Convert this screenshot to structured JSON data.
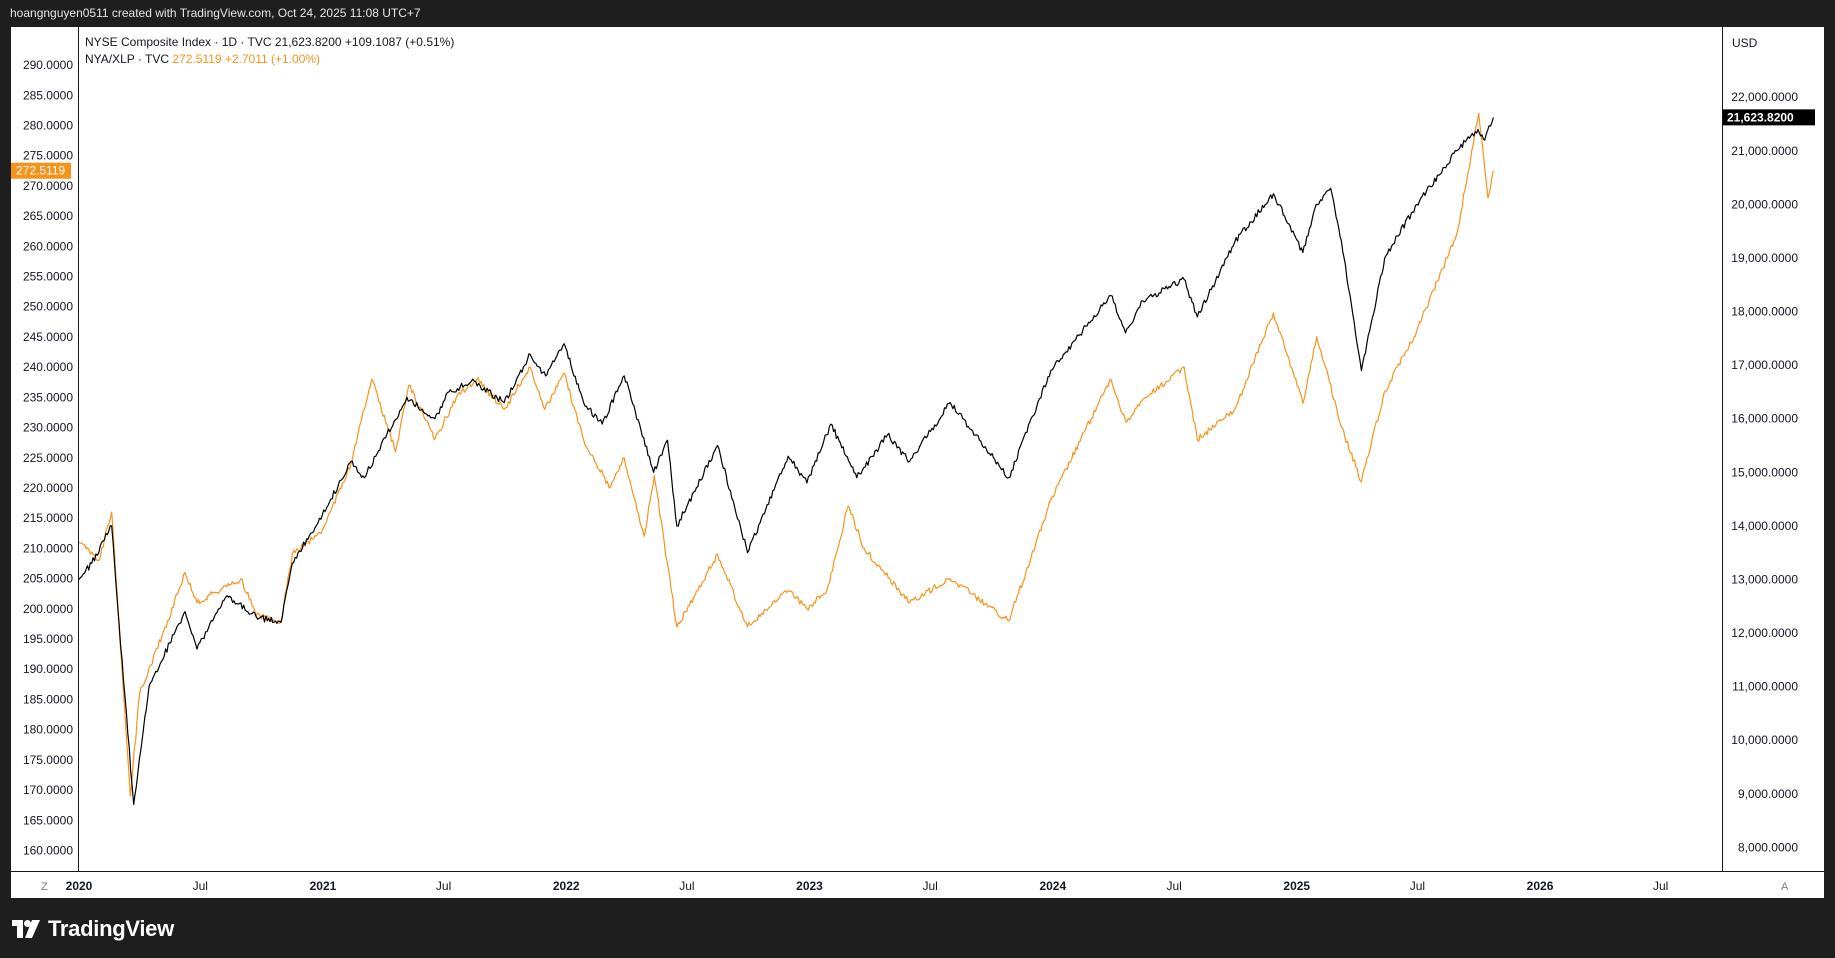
{
  "header": {
    "attribution": "hoangnguyen0511 created with TradingView.com, Oct 24, 2025 11:08 UTC+7"
  },
  "legend": {
    "line1": "NYSE Composite Index · 1D · TVC  21,623.8200  +109.1087 (+0.51%)",
    "line2_name": "NYA/XLP · TVC",
    "line2_values": "272.5119  +2.7011 (+1.00%)"
  },
  "colors": {
    "nya": "#000000",
    "ratio": "#f7931a",
    "background": "#ffffff",
    "frame": "#1e1e1e"
  },
  "axes": {
    "right_currency": "USD",
    "left_current_label": "272.5119",
    "right_current_label": "21,623.8200",
    "corner_left": "Z",
    "corner_right": "A"
  },
  "footer": {
    "brand": "TradingView",
    "logo_icon": "tradingview-logo-icon"
  },
  "chart_data": {
    "type": "line",
    "x_range": [
      "2020-01-01",
      "2026-10-01"
    ],
    "x_ticks": [
      {
        "date": "2020-01-01",
        "label": "2020",
        "bold": true
      },
      {
        "date": "2020-07-01",
        "label": "Jul",
        "bold": false
      },
      {
        "date": "2021-01-01",
        "label": "2021",
        "bold": true
      },
      {
        "date": "2021-07-01",
        "label": "Jul",
        "bold": false
      },
      {
        "date": "2022-01-01",
        "label": "2022",
        "bold": true
      },
      {
        "date": "2022-07-01",
        "label": "Jul",
        "bold": false
      },
      {
        "date": "2023-01-01",
        "label": "2023",
        "bold": true
      },
      {
        "date": "2023-07-01",
        "label": "Jul",
        "bold": false
      },
      {
        "date": "2024-01-01",
        "label": "2024",
        "bold": true
      },
      {
        "date": "2024-07-01",
        "label": "Jul",
        "bold": false
      },
      {
        "date": "2025-01-01",
        "label": "2025",
        "bold": true
      },
      {
        "date": "2025-07-01",
        "label": "Jul",
        "bold": false
      },
      {
        "date": "2026-01-01",
        "label": "2026",
        "bold": true
      },
      {
        "date": "2026-07-01",
        "label": "Jul",
        "bold": false
      }
    ],
    "left_axis": {
      "ylim": [
        156.6,
        296.3
      ],
      "ticks": [
        "290.0000",
        "285.0000",
        "280.0000",
        "275.0000",
        "270.0000",
        "265.0000",
        "260.0000",
        "255.0000",
        "250.0000",
        "245.0000",
        "240.0000",
        "235.0000",
        "230.0000",
        "225.0000",
        "220.0000",
        "215.0000",
        "210.0000",
        "205.0000",
        "200.0000",
        "195.0000",
        "190.0000",
        "185.0000",
        "180.0000",
        "175.0000",
        "170.0000",
        "165.0000",
        "160.0000"
      ]
    },
    "right_axis": {
      "ylim": [
        7560,
        23310
      ],
      "ticks": [
        "22,000.0000",
        "21,000.0000",
        "20,000.0000",
        "19,000.0000",
        "18,000.0000",
        "17,000.0000",
        "16,000.0000",
        "15,000.0000",
        "14,000.0000",
        "13,000.0000",
        "12,000.0000",
        "11,000.0000",
        "10,000.0000",
        "9,000.0000",
        "8,000.0000"
      ]
    },
    "series": [
      {
        "name": "NYSE Composite Index",
        "axis": "right",
        "points": [
          [
            "2020-01-01",
            13000
          ],
          [
            "2020-01-20",
            13300
          ],
          [
            "2020-02-19",
            14000
          ],
          [
            "2020-02-28",
            12500
          ],
          [
            "2020-03-23",
            8800
          ],
          [
            "2020-04-15",
            11000
          ],
          [
            "2020-06-08",
            12400
          ],
          [
            "2020-06-26",
            11700
          ],
          [
            "2020-08-10",
            12700
          ],
          [
            "2020-09-23",
            12300
          ],
          [
            "2020-10-30",
            12200
          ],
          [
            "2020-11-16",
            13300
          ],
          [
            "2020-12-31",
            14200
          ],
          [
            "2021-02-12",
            15200
          ],
          [
            "2021-03-04",
            14900
          ],
          [
            "2021-05-07",
            16400
          ],
          [
            "2021-06-18",
            16000
          ],
          [
            "2021-07-09",
            16500
          ],
          [
            "2021-08-16",
            16700
          ],
          [
            "2021-09-30",
            16300
          ],
          [
            "2021-11-08",
            17200
          ],
          [
            "2021-12-01",
            16800
          ],
          [
            "2021-12-29",
            17400
          ],
          [
            "2022-01-27",
            16300
          ],
          [
            "2022-02-24",
            15900
          ],
          [
            "2022-03-29",
            16800
          ],
          [
            "2022-05-12",
            15000
          ],
          [
            "2022-06-02",
            15600
          ],
          [
            "2022-06-16",
            14000
          ],
          [
            "2022-08-16",
            15500
          ],
          [
            "2022-09-30",
            13500
          ],
          [
            "2022-11-30",
            15300
          ],
          [
            "2022-12-28",
            14800
          ],
          [
            "2023-02-02",
            15900
          ],
          [
            "2023-03-13",
            14900
          ],
          [
            "2023-04-28",
            15700
          ],
          [
            "2023-05-31",
            15200
          ],
          [
            "2023-07-31",
            16300
          ],
          [
            "2023-10-27",
            14900
          ],
          [
            "2023-12-29",
            16900
          ],
          [
            "2024-03-28",
            18300
          ],
          [
            "2024-04-19",
            17600
          ],
          [
            "2024-05-15",
            18200
          ],
          [
            "2024-07-16",
            18600
          ],
          [
            "2024-08-05",
            17900
          ],
          [
            "2024-09-30",
            19300
          ],
          [
            "2024-11-27",
            20200
          ],
          [
            "2025-01-10",
            19100
          ],
          [
            "2025-01-30",
            20000
          ],
          [
            "2025-02-21",
            20300
          ],
          [
            "2025-03-13",
            19000
          ],
          [
            "2025-04-08",
            16900
          ],
          [
            "2025-05-13",
            19000
          ],
          [
            "2025-06-30",
            20000
          ],
          [
            "2025-08-29",
            21000
          ],
          [
            "2025-09-30",
            21400
          ],
          [
            "2025-10-10",
            21200
          ],
          [
            "2025-10-23",
            21623.82
          ]
        ]
      },
      {
        "name": "NYA/XLP",
        "axis": "left",
        "points": [
          [
            "2020-01-01",
            211
          ],
          [
            "2020-01-31",
            208
          ],
          [
            "2020-02-19",
            216
          ],
          [
            "2020-03-18",
            169
          ],
          [
            "2020-04-01",
            186
          ],
          [
            "2020-05-13",
            198
          ],
          [
            "2020-06-08",
            206
          ],
          [
            "2020-06-26",
            201
          ],
          [
            "2020-08-31",
            205
          ],
          [
            "2020-09-23",
            199
          ],
          [
            "2020-10-30",
            198
          ],
          [
            "2020-11-16",
            209
          ],
          [
            "2020-12-31",
            213
          ],
          [
            "2021-02-12",
            224
          ],
          [
            "2021-03-15",
            238
          ],
          [
            "2021-04-20",
            226
          ],
          [
            "2021-05-10",
            237
          ],
          [
            "2021-06-18",
            228
          ],
          [
            "2021-07-20",
            235
          ],
          [
            "2021-08-20",
            238
          ],
          [
            "2021-09-30",
            233
          ],
          [
            "2021-11-08",
            240
          ],
          [
            "2021-11-30",
            233
          ],
          [
            "2021-12-29",
            239
          ],
          [
            "2022-01-27",
            228
          ],
          [
            "2022-03-08",
            220
          ],
          [
            "2022-03-29",
            225
          ],
          [
            "2022-04-28",
            212
          ],
          [
            "2022-05-13",
            222
          ],
          [
            "2022-06-16",
            197
          ],
          [
            "2022-08-16",
            209
          ],
          [
            "2022-09-30",
            197
          ],
          [
            "2022-11-30",
            203
          ],
          [
            "2022-12-28",
            200
          ],
          [
            "2023-01-27",
            203
          ],
          [
            "2023-02-28",
            217
          ],
          [
            "2023-03-24",
            210
          ],
          [
            "2023-05-31",
            201
          ],
          [
            "2023-07-31",
            205
          ],
          [
            "2023-10-27",
            198
          ],
          [
            "2023-12-29",
            218
          ],
          [
            "2024-03-28",
            238
          ],
          [
            "2024-04-19",
            231
          ],
          [
            "2024-05-20",
            235
          ],
          [
            "2024-07-16",
            240
          ],
          [
            "2024-08-05",
            228
          ],
          [
            "2024-09-30",
            233
          ],
          [
            "2024-11-27",
            249
          ],
          [
            "2025-01-10",
            234
          ],
          [
            "2025-01-31",
            245
          ],
          [
            "2025-03-10",
            230
          ],
          [
            "2025-04-08",
            221
          ],
          [
            "2025-05-13",
            236
          ],
          [
            "2025-06-30",
            246
          ],
          [
            "2025-08-29",
            262
          ],
          [
            "2025-10-01",
            282
          ],
          [
            "2025-10-15",
            268
          ],
          [
            "2025-10-23",
            272.5119
          ]
        ]
      }
    ]
  }
}
